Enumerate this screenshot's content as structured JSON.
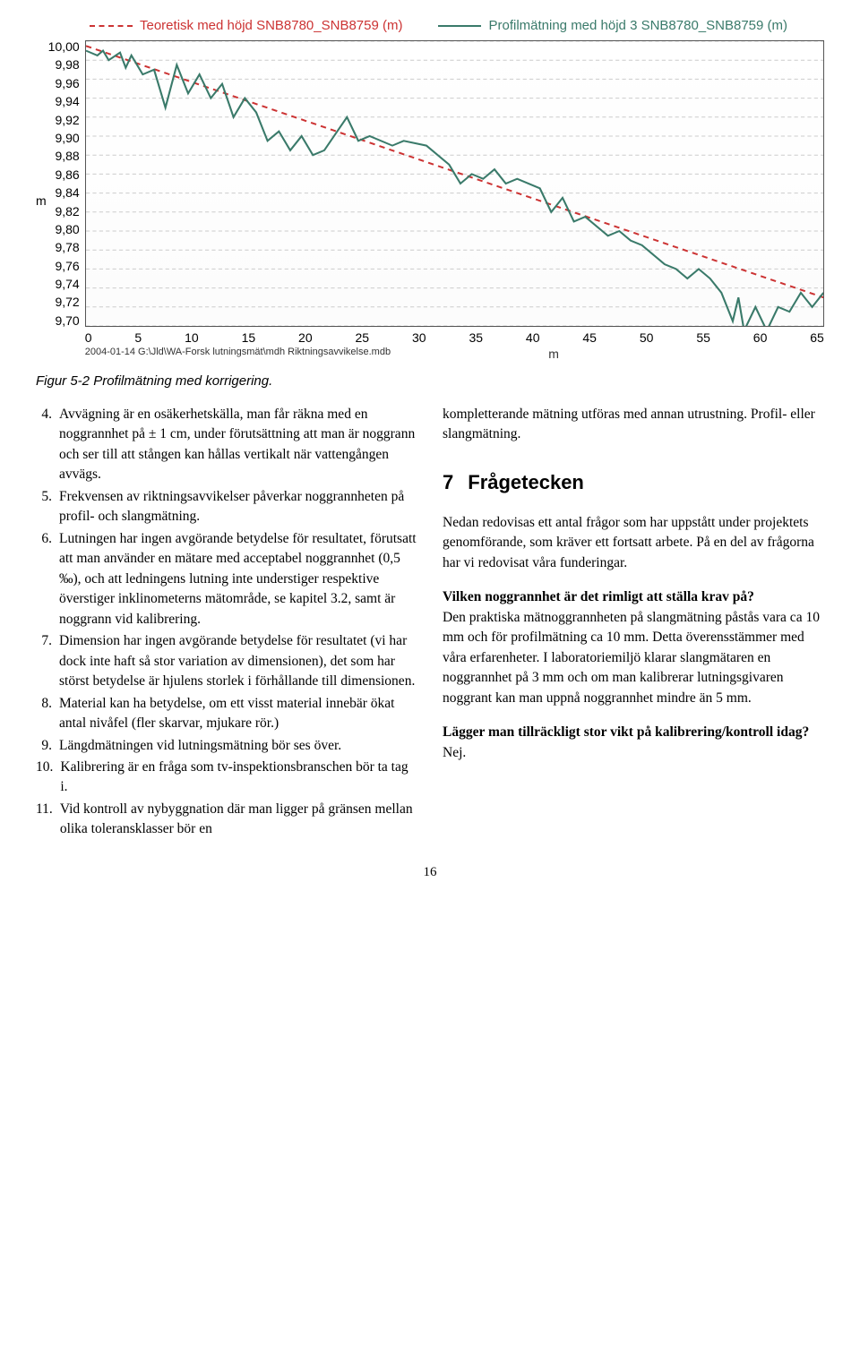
{
  "chart": {
    "type": "line",
    "legend": [
      {
        "label": "Teoretisk med höjd SNB8780_SNB8759 (m)",
        "color": "#cc3333",
        "style": "dashed"
      },
      {
        "label": "Profilmätning med höjd 3 SNB8780_SNB8759 (m)",
        "color": "#3a7a6a",
        "style": "solid"
      }
    ],
    "y_label": "m",
    "y_ticks": [
      "10,00",
      "9,98",
      "9,96",
      "9,94",
      "9,92",
      "9,90",
      "9,88",
      "9,86",
      "9,84",
      "9,82",
      "9,80",
      "9,78",
      "9,76",
      "9,74",
      "9,72",
      "9,70"
    ],
    "ylim": [
      9.7,
      10.0
    ],
    "x_label": "m",
    "x_ticks": [
      "0",
      "5",
      "10",
      "15",
      "20",
      "25",
      "30",
      "35",
      "40",
      "45",
      "50",
      "55",
      "60",
      "65"
    ],
    "xlim": [
      0,
      65
    ],
    "grid_color": "#cccccc",
    "border_color": "#555555",
    "background_color": "#ffffff",
    "footer_left": "2004-01-14  G:\\Jld\\WA-Forsk lutningsmät\\mdh Riktningsavvikelse.mdb",
    "series_theoretical": [
      {
        "x": 0,
        "y": 9.995
      },
      {
        "x": 65,
        "y": 9.73
      }
    ],
    "series_profile": [
      {
        "x": 0,
        "y": 9.99
      },
      {
        "x": 1,
        "y": 9.985
      },
      {
        "x": 1.5,
        "y": 9.99
      },
      {
        "x": 2,
        "y": 9.98
      },
      {
        "x": 3,
        "y": 9.988
      },
      {
        "x": 3.5,
        "y": 9.972
      },
      {
        "x": 4,
        "y": 9.985
      },
      {
        "x": 5,
        "y": 9.965
      },
      {
        "x": 6,
        "y": 9.97
      },
      {
        "x": 7,
        "y": 9.93
      },
      {
        "x": 8,
        "y": 9.975
      },
      {
        "x": 9,
        "y": 9.945
      },
      {
        "x": 10,
        "y": 9.965
      },
      {
        "x": 11,
        "y": 9.94
      },
      {
        "x": 12,
        "y": 9.955
      },
      {
        "x": 13,
        "y": 9.92
      },
      {
        "x": 14,
        "y": 9.94
      },
      {
        "x": 15,
        "y": 9.925
      },
      {
        "x": 16,
        "y": 9.895
      },
      {
        "x": 17,
        "y": 9.905
      },
      {
        "x": 18,
        "y": 9.885
      },
      {
        "x": 19,
        "y": 9.9
      },
      {
        "x": 20,
        "y": 9.88
      },
      {
        "x": 21,
        "y": 9.885
      },
      {
        "x": 23,
        "y": 9.92
      },
      {
        "x": 24,
        "y": 9.895
      },
      {
        "x": 25,
        "y": 9.9
      },
      {
        "x": 27,
        "y": 9.89
      },
      {
        "x": 28,
        "y": 9.895
      },
      {
        "x": 30,
        "y": 9.89
      },
      {
        "x": 31.5,
        "y": 9.875
      },
      {
        "x": 32,
        "y": 9.87
      },
      {
        "x": 33,
        "y": 9.85
      },
      {
        "x": 34,
        "y": 9.86
      },
      {
        "x": 35,
        "y": 9.855
      },
      {
        "x": 36,
        "y": 9.865
      },
      {
        "x": 37,
        "y": 9.85
      },
      {
        "x": 38,
        "y": 9.855
      },
      {
        "x": 40,
        "y": 9.845
      },
      {
        "x": 41,
        "y": 9.82
      },
      {
        "x": 42,
        "y": 9.835
      },
      {
        "x": 43,
        "y": 9.81
      },
      {
        "x": 44,
        "y": 9.815
      },
      {
        "x": 46,
        "y": 9.795
      },
      {
        "x": 47,
        "y": 9.8
      },
      {
        "x": 48,
        "y": 9.79
      },
      {
        "x": 49,
        "y": 9.785
      },
      {
        "x": 50,
        "y": 9.775
      },
      {
        "x": 51,
        "y": 9.765
      },
      {
        "x": 52,
        "y": 9.76
      },
      {
        "x": 53,
        "y": 9.75
      },
      {
        "x": 54,
        "y": 9.76
      },
      {
        "x": 55,
        "y": 9.75
      },
      {
        "x": 56,
        "y": 9.735
      },
      {
        "x": 57,
        "y": 9.705
      },
      {
        "x": 57.5,
        "y": 9.73
      },
      {
        "x": 58,
        "y": 9.695
      },
      {
        "x": 59,
        "y": 9.72
      },
      {
        "x": 60,
        "y": 9.695
      },
      {
        "x": 61,
        "y": 9.72
      },
      {
        "x": 62,
        "y": 9.715
      },
      {
        "x": 63,
        "y": 9.735
      },
      {
        "x": 64,
        "y": 9.72
      },
      {
        "x": 65,
        "y": 9.735
      }
    ],
    "line_width": 2,
    "theoretical_dash": "6,5"
  },
  "figure_caption": "Figur 5-2  Profilmätning med korrigering.",
  "left_list": [
    {
      "num": "4.",
      "text": "Avvägning är  en osäkerhetskälla, man får räkna med en noggrannhet  på ± 1 cm, under förutsättning att man är noggrann och ser till att stången kan hållas vertikalt när vattengången avvägs."
    },
    {
      "num": "5.",
      "text": "Frekvensen av riktningsavvikelser påverkar noggrannheten på profil- och slangmätning."
    },
    {
      "num": "6.",
      "text": "Lutningen har ingen avgörande betydelse för resultatet, förutsatt att man använder en mätare med acceptabel noggrannhet (0,5 ‰), och att ledningens lutning inte understiger respektive överstiger inklinometerns mätområde, se kapitel 3.2, samt är noggrann vid kalibrering."
    },
    {
      "num": "7.",
      "text": "Dimension har ingen avgörande betydelse för resultatet (vi har dock inte haft så stor variation av dimensionen), det som har störst betydelse är hjulens storlek i förhållande till dimensionen."
    },
    {
      "num": "8.",
      "text": "Material kan ha betydelse, om ett visst material innebär ökat antal nivåfel (fler skarvar, mjukare rör.)"
    },
    {
      "num": "9.",
      "text": "Längdmätningen vid lutningsmätning bör ses över."
    },
    {
      "num": "10.",
      "text": "Kalibrering är en fråga som tv-inspektionsbranschen bör ta tag i."
    },
    {
      "num": "11.",
      "text": "Vid kontroll av nybyggnation där man ligger på gränsen mellan olika toleransklasser bör en"
    }
  ],
  "right_top": "kompletterande mätning utföras med annan utrustning. Profil- eller slangmätning.",
  "section": {
    "num": "7",
    "title": "Frågetecken"
  },
  "right_p1": "Nedan redovisas ett antal frågor som har uppstått under projektets genomförande, som kräver ett fortsatt arbete. På en del av frågorna har vi redovisat våra funderingar.",
  "right_q1": "Vilken noggrannhet är det rimligt att ställa krav på?",
  "right_p2": "Den praktiska mätnoggrannheten på slangmätning påstås vara ca 10 mm och för profilmätning ca 10 mm. Detta överensstämmer med våra erfarenheter. I laboratoriemiljö klarar slangmätaren en noggrannhet på 3 mm och om man kalibrerar lutningsgivaren noggrant kan man uppnå noggrannhet mindre än 5 mm.",
  "right_q2": "Lägger man tillräckligt stor vikt på kalibrering/kontroll idag?",
  "right_p3": "Nej.",
  "page_number": "16"
}
